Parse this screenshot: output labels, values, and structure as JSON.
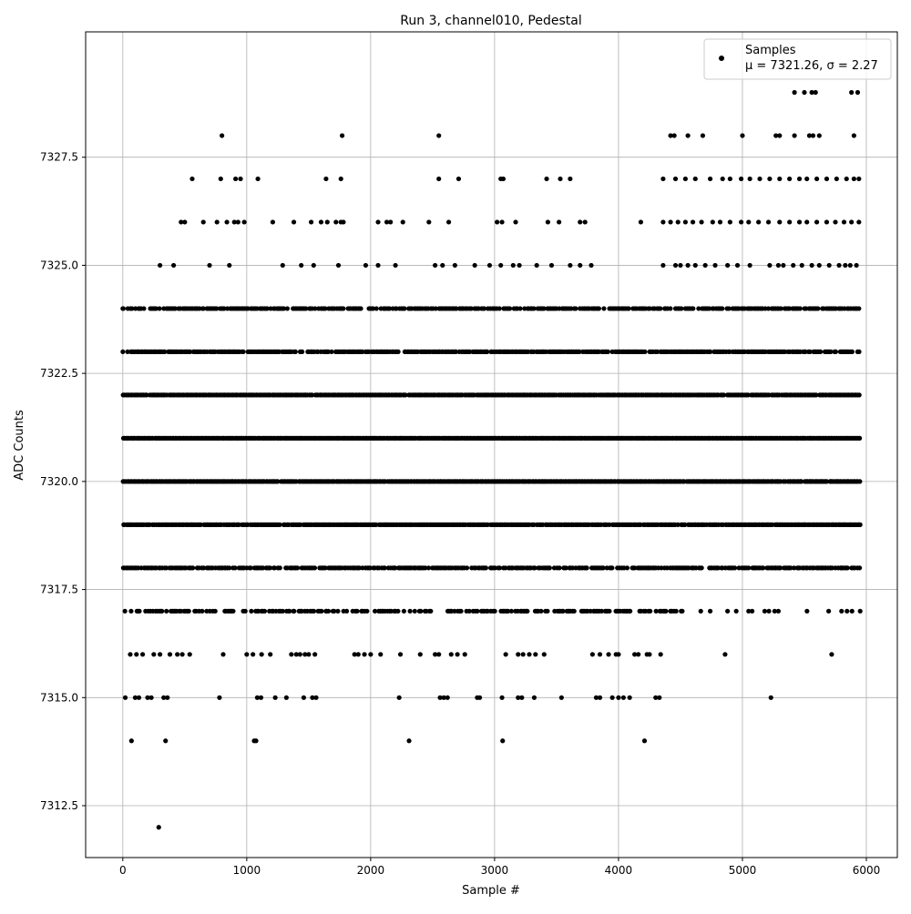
{
  "chart_data": {
    "type": "scatter",
    "title": "Run 3, channel010, Pedestal",
    "xlabel": "Sample #",
    "ylabel": "ADC Counts",
    "xlim": [
      -300,
      6250
    ],
    "ylim": [
      7311.3,
      7330.4
    ],
    "x_ticks": [
      0,
      1000,
      2000,
      3000,
      4000,
      5000,
      6000
    ],
    "x_tick_labels": [
      "0",
      "1000",
      "2000",
      "3000",
      "4000",
      "5000",
      "6000"
    ],
    "y_ticks": [
      7312.5,
      7315.0,
      7317.5,
      7320.0,
      7322.5,
      7325.0,
      7327.5
    ],
    "y_tick_labels": [
      "7312.5",
      "7315.0",
      "7317.5",
      "7320.0",
      "7322.5",
      "7325.0",
      "7327.5"
    ],
    "grid": true,
    "legend": {
      "placement": "top-right",
      "entries": [
        {
          "label": "Samples",
          "stat": "μ = 7321.26, σ = 2.27"
        }
      ]
    },
    "point_color": "#000000",
    "sample_range": [
      0,
      5950
    ],
    "series": [
      {
        "name": "Samples",
        "points": [
          [
            290,
            7312
          ],
          [
            70,
            7314
          ],
          [
            345,
            7314
          ],
          [
            1060,
            7314
          ],
          [
            1075,
            7314
          ],
          [
            2310,
            7314
          ],
          [
            3065,
            7314
          ],
          [
            4210,
            7314
          ],
          [
            20,
            7315
          ],
          [
            100,
            7315
          ],
          [
            130,
            7315
          ],
          [
            200,
            7315
          ],
          [
            230,
            7315
          ],
          [
            330,
            7315
          ],
          [
            360,
            7315
          ],
          [
            780,
            7315
          ],
          [
            1085,
            7315
          ],
          [
            1115,
            7315
          ],
          [
            1230,
            7315
          ],
          [
            1320,
            7315
          ],
          [
            1460,
            7315
          ],
          [
            1530,
            7315
          ],
          [
            1560,
            7315
          ],
          [
            2230,
            7315
          ],
          [
            2560,
            7315
          ],
          [
            2590,
            7315
          ],
          [
            2620,
            7315
          ],
          [
            2860,
            7315
          ],
          [
            2880,
            7315
          ],
          [
            3060,
            7315
          ],
          [
            3190,
            7315
          ],
          [
            3220,
            7315
          ],
          [
            3320,
            7315
          ],
          [
            3540,
            7315
          ],
          [
            3820,
            7315
          ],
          [
            3850,
            7315
          ],
          [
            3950,
            7315
          ],
          [
            4000,
            7315
          ],
          [
            4040,
            7315
          ],
          [
            4090,
            7315
          ],
          [
            4300,
            7315
          ],
          [
            4330,
            7315
          ],
          [
            5230,
            7315
          ],
          [
            60,
            7316
          ],
          [
            110,
            7316
          ],
          [
            160,
            7316
          ],
          [
            250,
            7316
          ],
          [
            300,
            7316
          ],
          [
            380,
            7316
          ],
          [
            440,
            7316
          ],
          [
            480,
            7316
          ],
          [
            540,
            7316
          ],
          [
            810,
            7316
          ],
          [
            1000,
            7316
          ],
          [
            1050,
            7316
          ],
          [
            1120,
            7316
          ],
          [
            1190,
            7316
          ],
          [
            1360,
            7316
          ],
          [
            1400,
            7316
          ],
          [
            1430,
            7316
          ],
          [
            1470,
            7316
          ],
          [
            1500,
            7316
          ],
          [
            1550,
            7316
          ],
          [
            1870,
            7316
          ],
          [
            1900,
            7316
          ],
          [
            1950,
            7316
          ],
          [
            2000,
            7316
          ],
          [
            2080,
            7316
          ],
          [
            2240,
            7316
          ],
          [
            2400,
            7316
          ],
          [
            2520,
            7316
          ],
          [
            2550,
            7316
          ],
          [
            2650,
            7316
          ],
          [
            2700,
            7316
          ],
          [
            2760,
            7316
          ],
          [
            3090,
            7316
          ],
          [
            3190,
            7316
          ],
          [
            3230,
            7316
          ],
          [
            3280,
            7316
          ],
          [
            3330,
            7316
          ],
          [
            3400,
            7316
          ],
          [
            3790,
            7316
          ],
          [
            3850,
            7316
          ],
          [
            3920,
            7316
          ],
          [
            3980,
            7316
          ],
          [
            4000,
            7316
          ],
          [
            4130,
            7316
          ],
          [
            4160,
            7316
          ],
          [
            4230,
            7316
          ],
          [
            4250,
            7316
          ],
          [
            4340,
            7316
          ],
          [
            4860,
            7316
          ],
          [
            5720,
            7316
          ],
          [
            4740,
            7317
          ],
          [
            4880,
            7317
          ],
          [
            4950,
            7317
          ],
          [
            5050,
            7317
          ],
          [
            5180,
            7317
          ],
          [
            5260,
            7317
          ],
          [
            5290,
            7317
          ],
          [
            5800,
            7317
          ],
          [
            5950,
            7317
          ],
          [
            5050,
            7318
          ],
          [
            5100,
            7318
          ],
          [
            5270,
            7318
          ],
          [
            5670,
            7318
          ],
          [
            5800,
            7318
          ],
          [
            5280,
            7319
          ],
          [
            5320,
            7319
          ],
          [
            5450,
            7319
          ],
          [
            5500,
            7319
          ],
          [
            5730,
            7319
          ],
          [
            5780,
            7319
          ],
          [
            5820,
            7319
          ],
          [
            5870,
            7319
          ],
          [
            5950,
            7319
          ],
          [
            5470,
            7320
          ],
          [
            5520,
            7320
          ],
          [
            5550,
            7320
          ],
          [
            5600,
            7320
          ],
          [
            5640,
            7320
          ],
          [
            5670,
            7320
          ],
          [
            5720,
            7320
          ],
          [
            5760,
            7320
          ],
          [
            5850,
            7320
          ],
          [
            0,
            7324
          ],
          [
            5940,
            7324
          ],
          [
            300,
            7325
          ],
          [
            410,
            7325
          ],
          [
            700,
            7325
          ],
          [
            860,
            7325
          ],
          [
            1290,
            7325
          ],
          [
            1440,
            7325
          ],
          [
            1540,
            7325
          ],
          [
            1740,
            7325
          ],
          [
            1960,
            7325
          ],
          [
            2060,
            7325
          ],
          [
            2200,
            7325
          ],
          [
            2520,
            7325
          ],
          [
            2580,
            7325
          ],
          [
            2680,
            7325
          ],
          [
            2840,
            7325
          ],
          [
            2960,
            7325
          ],
          [
            3050,
            7325
          ],
          [
            3150,
            7325
          ],
          [
            3200,
            7325
          ],
          [
            3340,
            7325
          ],
          [
            3460,
            7325
          ],
          [
            3610,
            7325
          ],
          [
            3690,
            7325
          ],
          [
            3780,
            7325
          ],
          [
            4360,
            7325
          ],
          [
            4460,
            7325
          ],
          [
            4500,
            7325
          ],
          [
            4560,
            7325
          ],
          [
            4620,
            7325
          ],
          [
            4700,
            7325
          ],
          [
            4780,
            7325
          ],
          [
            4880,
            7325
          ],
          [
            4960,
            7325
          ],
          [
            5060,
            7325
          ],
          [
            5220,
            7325
          ],
          [
            5290,
            7325
          ],
          [
            5330,
            7325
          ],
          [
            5410,
            7325
          ],
          [
            5480,
            7325
          ],
          [
            5560,
            7325
          ],
          [
            5620,
            7325
          ],
          [
            5700,
            7325
          ],
          [
            5780,
            7325
          ],
          [
            5830,
            7325
          ],
          [
            5870,
            7325
          ],
          [
            5920,
            7325
          ],
          [
            470,
            7326
          ],
          [
            500,
            7326
          ],
          [
            650,
            7326
          ],
          [
            760,
            7326
          ],
          [
            840,
            7326
          ],
          [
            900,
            7326
          ],
          [
            930,
            7326
          ],
          [
            980,
            7326
          ],
          [
            1210,
            7326
          ],
          [
            1380,
            7326
          ],
          [
            1520,
            7326
          ],
          [
            1600,
            7326
          ],
          [
            1650,
            7326
          ],
          [
            1720,
            7326
          ],
          [
            1760,
            7326
          ],
          [
            1780,
            7326
          ],
          [
            2060,
            7326
          ],
          [
            2130,
            7326
          ],
          [
            2160,
            7326
          ],
          [
            2260,
            7326
          ],
          [
            2470,
            7326
          ],
          [
            2630,
            7326
          ],
          [
            3020,
            7326
          ],
          [
            3060,
            7326
          ],
          [
            3170,
            7326
          ],
          [
            3430,
            7326
          ],
          [
            3520,
            7326
          ],
          [
            3690,
            7326
          ],
          [
            3730,
            7326
          ],
          [
            4180,
            7326
          ],
          [
            4360,
            7326
          ],
          [
            4420,
            7326
          ],
          [
            4480,
            7326
          ],
          [
            4540,
            7326
          ],
          [
            4600,
            7326
          ],
          [
            4670,
            7326
          ],
          [
            4760,
            7326
          ],
          [
            4820,
            7326
          ],
          [
            4900,
            7326
          ],
          [
            4990,
            7326
          ],
          [
            5050,
            7326
          ],
          [
            5130,
            7326
          ],
          [
            5210,
            7326
          ],
          [
            5300,
            7326
          ],
          [
            5380,
            7326
          ],
          [
            5460,
            7326
          ],
          [
            5520,
            7326
          ],
          [
            5600,
            7326
          ],
          [
            5680,
            7326
          ],
          [
            5750,
            7326
          ],
          [
            5820,
            7326
          ],
          [
            5880,
            7326
          ],
          [
            5940,
            7326
          ],
          [
            560,
            7327
          ],
          [
            790,
            7327
          ],
          [
            910,
            7327
          ],
          [
            950,
            7327
          ],
          [
            1090,
            7327
          ],
          [
            1640,
            7327
          ],
          [
            1760,
            7327
          ],
          [
            2550,
            7327
          ],
          [
            2710,
            7327
          ],
          [
            3050,
            7327
          ],
          [
            3070,
            7327
          ],
          [
            3420,
            7327
          ],
          [
            3530,
            7327
          ],
          [
            3610,
            7327
          ],
          [
            4360,
            7327
          ],
          [
            4460,
            7327
          ],
          [
            4540,
            7327
          ],
          [
            4620,
            7327
          ],
          [
            4740,
            7327
          ],
          [
            4840,
            7327
          ],
          [
            4900,
            7327
          ],
          [
            4990,
            7327
          ],
          [
            5060,
            7327
          ],
          [
            5140,
            7327
          ],
          [
            5220,
            7327
          ],
          [
            5300,
            7327
          ],
          [
            5380,
            7327
          ],
          [
            5460,
            7327
          ],
          [
            5520,
            7327
          ],
          [
            5600,
            7327
          ],
          [
            5680,
            7327
          ],
          [
            5760,
            7327
          ],
          [
            5840,
            7327
          ],
          [
            5900,
            7327
          ],
          [
            5940,
            7327
          ],
          [
            800,
            7328
          ],
          [
            1770,
            7328
          ],
          [
            2550,
            7328
          ],
          [
            4420,
            7328
          ],
          [
            4450,
            7328
          ],
          [
            4560,
            7328
          ],
          [
            4680,
            7328
          ],
          [
            5000,
            7328
          ],
          [
            5270,
            7328
          ],
          [
            5300,
            7328
          ],
          [
            5420,
            7328
          ],
          [
            5540,
            7328
          ],
          [
            5570,
            7328
          ],
          [
            5620,
            7328
          ],
          [
            5900,
            7328
          ],
          [
            5420,
            7329
          ],
          [
            5500,
            7329
          ],
          [
            5560,
            7329
          ],
          [
            5590,
            7329
          ],
          [
            5880,
            7329
          ],
          [
            5930,
            7329
          ]
        ]
      }
    ]
  }
}
